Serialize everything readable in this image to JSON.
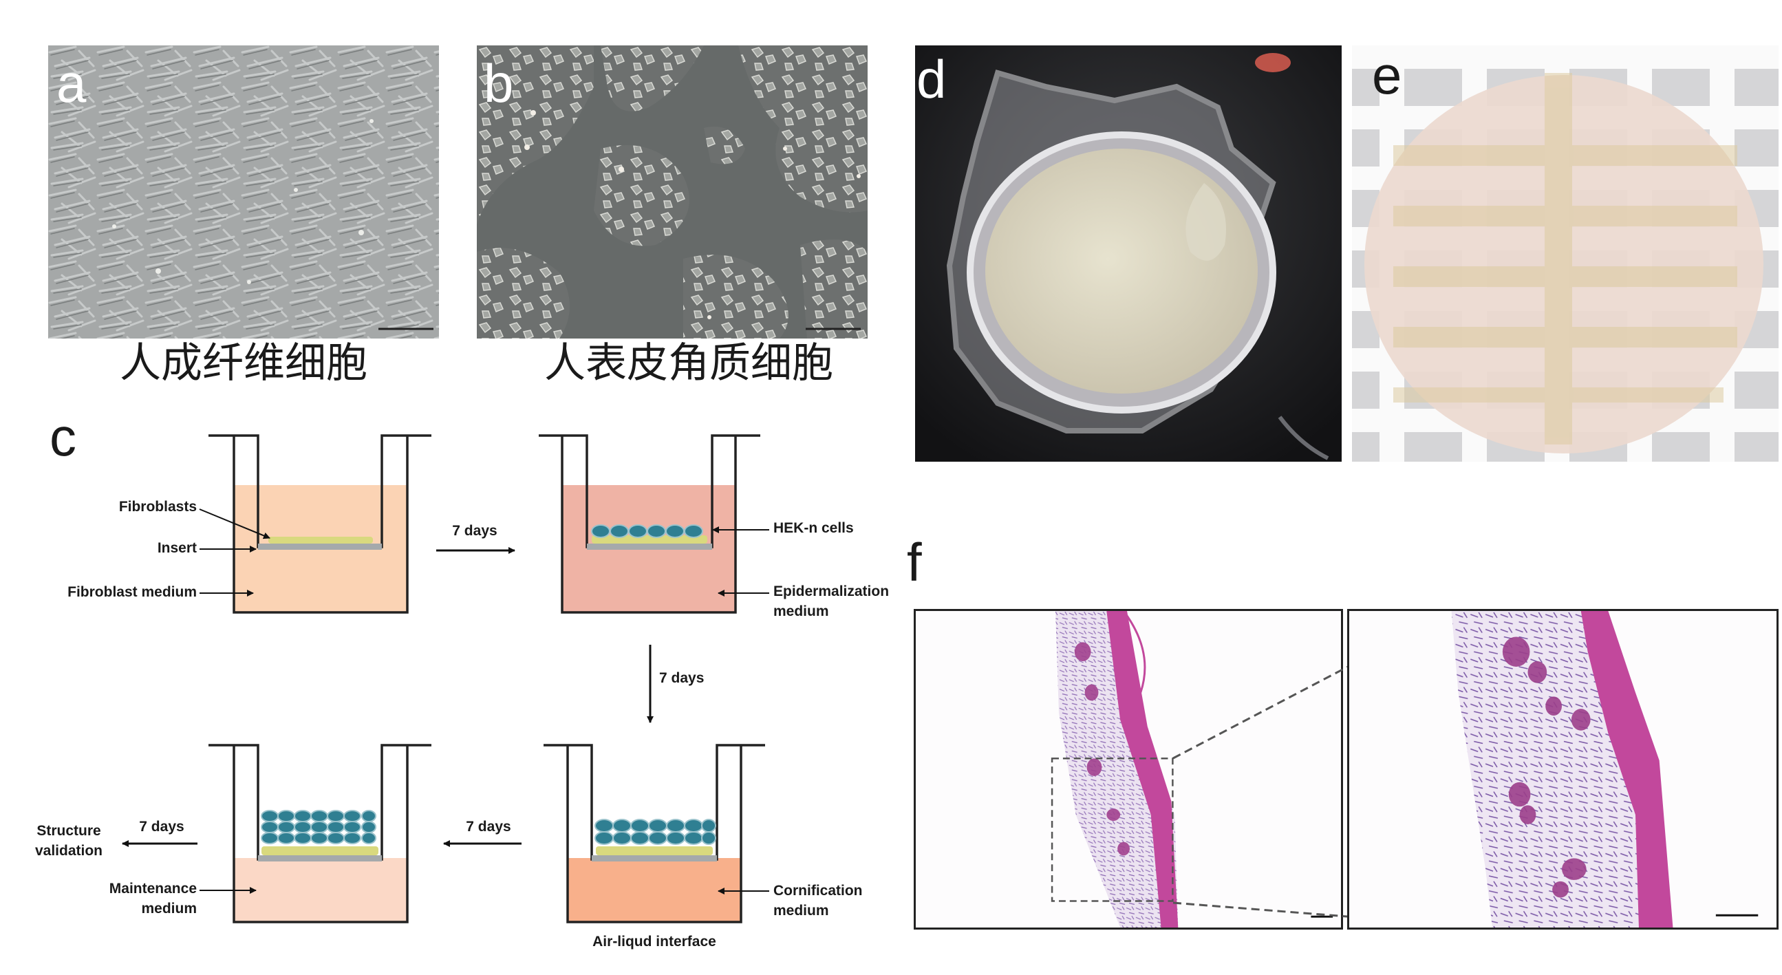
{
  "figure": {
    "panels": {
      "a": {
        "letter": "a",
        "caption": "人成纤维细胞"
      },
      "b": {
        "letter": "b",
        "caption": "人表皮角质细胞"
      },
      "c": {
        "letter": "c"
      },
      "d": {
        "letter": "d"
      },
      "e": {
        "letter": "e"
      },
      "f": {
        "letter": "f"
      }
    },
    "diagram": {
      "step1": {
        "fibroblasts": "Fibroblasts",
        "insert": "Insert",
        "medium": "Fibroblast medium"
      },
      "arrow1": "7 days",
      "step2": {
        "cells": "HEK-n cells",
        "medium_line1": "Epidermalization",
        "medium_line2": "medium"
      },
      "arrow2": "7 days",
      "step3": {
        "medium_line1": "Cornification",
        "medium_line2": "medium",
        "interface": "Air-liqud interface"
      },
      "arrow3": "7 days",
      "step4": {
        "medium_line1": "Maintenance",
        "medium_line2": "medium"
      },
      "arrow4": "7 days",
      "result_line1": "Structure",
      "result_line2": "validation"
    },
    "colors": {
      "fibroblast_medium": "#fbd3b4",
      "epidermalization_medium": "#efb3a5",
      "cornification_medium": "#f8b08b",
      "maintenance_medium": "#fbd8c6",
      "cell_blue": "#2f7f92",
      "fibroblast_yellow": "#d9d97e",
      "insert_gray": "#a5a9ab",
      "he_pink": "#c2489c",
      "he_purple": "#7b4aa0"
    }
  }
}
